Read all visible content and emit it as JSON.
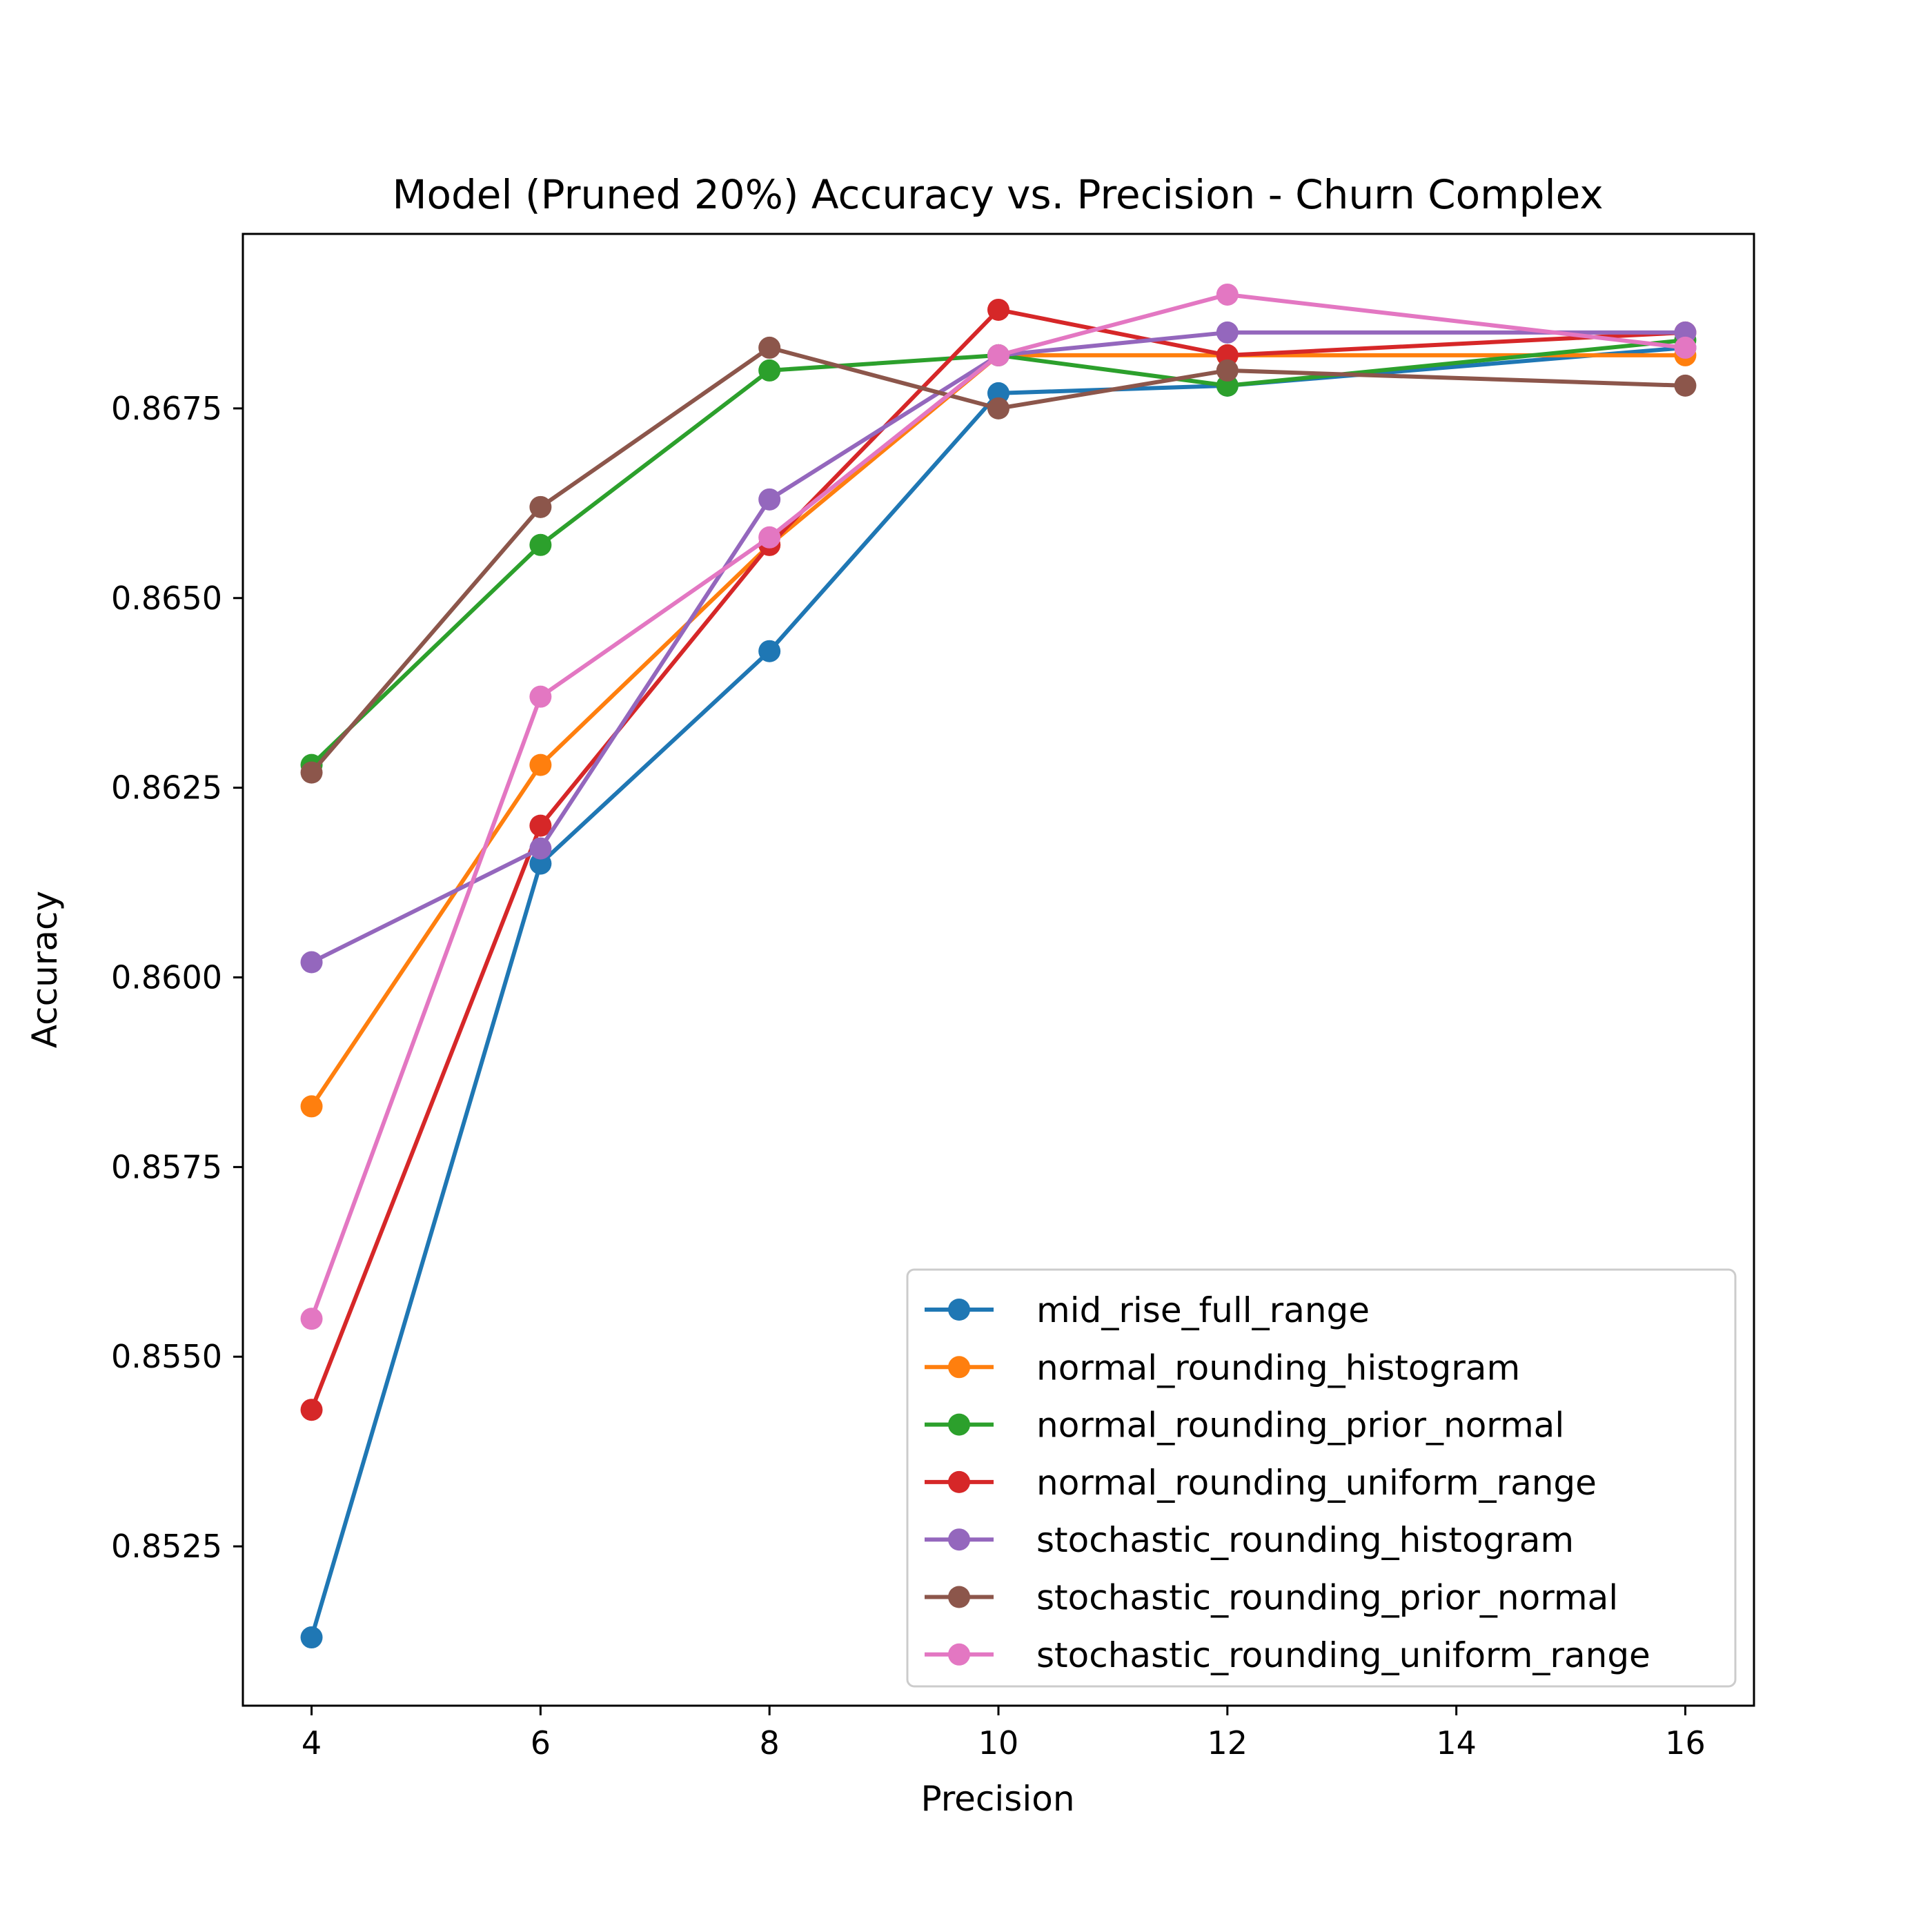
{
  "chart_data": {
    "type": "line",
    "title": "Model (Pruned 20%) Accuracy vs. Precision - Churn Complex",
    "xlabel": "Precision",
    "ylabel": "Accuracy",
    "x": [
      4,
      6,
      8,
      10,
      12,
      16
    ],
    "xticks": [
      4,
      6,
      8,
      10,
      12,
      14,
      16
    ],
    "xtick_labels": [
      "4",
      "6",
      "8",
      "10",
      "12",
      "14",
      "16"
    ],
    "yticks": [
      0.8525,
      0.855,
      0.8575,
      0.86,
      0.8625,
      0.865,
      0.8675
    ],
    "ytick_labels": [
      "0.8525",
      "0.8550",
      "0.8575",
      "0.8600",
      "0.8625",
      "0.8650",
      "0.8675"
    ],
    "xlim": [
      3.4,
      16.6
    ],
    "ylim": [
      0.8504,
      0.8698
    ],
    "grid": false,
    "legend_position": "lower-right",
    "series": [
      {
        "name": "mid_rise_full_range",
        "color": "#1f77b4",
        "values": [
          0.8513,
          0.8615,
          0.8643,
          0.8677,
          0.8678,
          0.8683
        ]
      },
      {
        "name": "normal_rounding_histogram",
        "color": "#ff7f0e",
        "values": [
          0.8583,
          0.8628,
          0.8657,
          0.8682,
          0.8682,
          0.8682
        ]
      },
      {
        "name": "normal_rounding_prior_normal",
        "color": "#2ca02c",
        "values": [
          0.8628,
          0.8657,
          0.868,
          0.8682,
          0.8678,
          0.8684
        ]
      },
      {
        "name": "normal_rounding_uniform_range",
        "color": "#d62728",
        "values": [
          0.8543,
          0.862,
          0.8657,
          0.8688,
          0.8682,
          0.8685
        ]
      },
      {
        "name": "stochastic_rounding_histogram",
        "color": "#9467bd",
        "values": [
          0.8602,
          0.8617,
          0.8663,
          0.8682,
          0.8685,
          0.8685
        ]
      },
      {
        "name": "stochastic_rounding_prior_normal",
        "color": "#8c564b",
        "values": [
          0.8627,
          0.8662,
          0.8683,
          0.8675,
          0.868,
          0.8678
        ]
      },
      {
        "name": "stochastic_rounding_uniform_range",
        "color": "#e377c2",
        "values": [
          0.8555,
          0.8637,
          0.8658,
          0.8682,
          0.869,
          0.8683
        ]
      }
    ]
  }
}
